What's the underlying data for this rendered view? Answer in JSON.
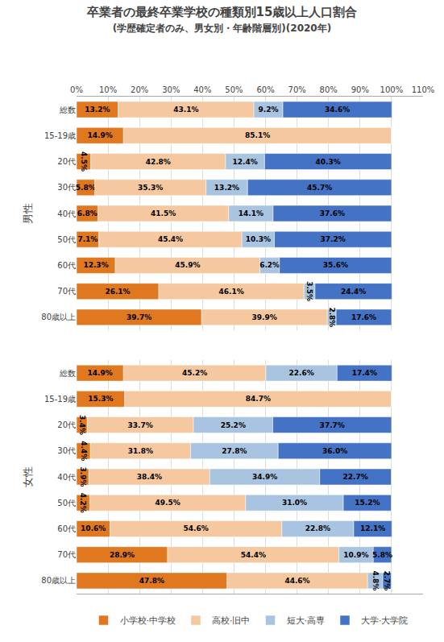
{
  "chart_data": [
    {
      "type": "bar",
      "orientation": "horizontal",
      "stacked": true,
      "data_labels": true,
      "grid": true,
      "title": "卒業者の最終卒業学校の種類別15歳以上人口割合",
      "subtitle": "(学歴確定者のみ、男女別・年齢階層別)(2020年)",
      "ylabel": "男性",
      "categories": [
        "総数",
        "15-19歳",
        "20代",
        "30代",
        "40代",
        "50代",
        "60代",
        "70代",
        "80歳以上"
      ],
      "series": [
        {
          "name": "小学校·中学校",
          "color": "#E07820",
          "values": [
            13.2,
            14.9,
            4.5,
            5.8,
            6.8,
            7.1,
            12.3,
            26.1,
            39.7
          ],
          "value_labels": [
            "13.2%",
            "14.9%",
            "4.5%",
            "5.8%",
            "6.8%",
            "7.1%",
            "12.3%",
            "26.1%",
            "39.7%"
          ]
        },
        {
          "name": "高校·旧中",
          "color": "#F5C8A0",
          "values": [
            43.1,
            85.1,
            42.8,
            35.3,
            41.5,
            45.4,
            45.9,
            46.1,
            39.9
          ],
          "value_labels": [
            "43.1%",
            "85.1%",
            "42.8%",
            "35.3%",
            "41.5%",
            "45.4%",
            "45.9%",
            "46.1%",
            "39.9%"
          ]
        },
        {
          "name": "短大·高専",
          "color": "#A8C4E0",
          "values": [
            9.2,
            0.0,
            12.4,
            13.2,
            14.1,
            10.3,
            6.2,
            3.5,
            2.8
          ],
          "value_labels": [
            "9.2%",
            null,
            "12.4%",
            "13.2%",
            "14.1%",
            "10.3%",
            "6.2%",
            "3.5%",
            "2.8%"
          ]
        },
        {
          "name": "大学·大学院",
          "color": "#4472C4",
          "values": [
            34.6,
            0.0,
            40.3,
            45.7,
            37.6,
            37.2,
            35.6,
            24.4,
            17.6
          ],
          "value_labels": [
            "34.6%",
            null,
            "40.3%",
            "45.7%",
            "37.6%",
            "37.2%",
            "35.6%",
            "24.4%",
            "17.6%"
          ]
        }
      ],
      "xlim": [
        0,
        110
      ],
      "xticks": [
        {
          "value": 0,
          "label": "0%"
        },
        {
          "value": 10,
          "label": "10%"
        },
        {
          "value": 20,
          "label": "20%"
        },
        {
          "value": 30,
          "label": "30%"
        },
        {
          "value": 40,
          "label": "40%"
        },
        {
          "value": 50,
          "label": "50%"
        },
        {
          "value": 60,
          "label": "60%"
        },
        {
          "value": 70,
          "label": "70%"
        },
        {
          "value": 80,
          "label": "80%"
        },
        {
          "value": 90,
          "label": "90%"
        },
        {
          "value": 100,
          "label": "100%"
        },
        {
          "value": 110,
          "label": "110%"
        }
      ]
    },
    {
      "type": "bar",
      "orientation": "horizontal",
      "stacked": true,
      "data_labels": true,
      "grid": true,
      "ylabel": "女性",
      "tick_labels": "y",
      "legend": "bottom",
      "categories": [
        "総数",
        "15-19歳",
        "20代",
        "30代",
        "40代",
        "50代",
        "60代",
        "70代",
        "80歳以上"
      ],
      "series": [
        {
          "name": "小学校·中学校",
          "color": "#E07820",
          "values": [
            14.9,
            15.3,
            3.4,
            4.4,
            3.9,
            4.2,
            10.6,
            28.9,
            47.8
          ],
          "value_labels": [
            "14.9%",
            "15.3%",
            "3.4%",
            "4.4%",
            "3.9%",
            "4.2%",
            "10.6%",
            "28.9%",
            "47.8%"
          ]
        },
        {
          "name": "高校·旧中",
          "color": "#F5C8A0",
          "values": [
            45.2,
            84.7,
            33.7,
            31.8,
            38.4,
            49.5,
            54.6,
            54.4,
            44.6
          ],
          "value_labels": [
            "45.2%",
            "84.7%",
            "33.7%",
            "31.8%",
            "38.4%",
            "49.5%",
            "54.6%",
            "54.4%",
            "44.6%"
          ]
        },
        {
          "name": "短大·高専",
          "color": "#A8C4E0",
          "values": [
            22.6,
            0.0,
            25.2,
            27.8,
            34.9,
            31.0,
            22.8,
            10.9,
            4.8
          ],
          "value_labels": [
            "22.6%",
            null,
            "25.2%",
            "27.8%",
            "34.9%",
            "31.0%",
            "22.8%",
            "10.9%",
            "4.8%"
          ]
        },
        {
          "name": "大学·大学院",
          "color": "#4472C4",
          "values": [
            17.4,
            0.0,
            37.7,
            36.0,
            22.7,
            15.2,
            12.1,
            5.8,
            2.7
          ],
          "value_labels": [
            "17.4%",
            null,
            "37.7%",
            "36.0%",
            "22.7%",
            "15.2%",
            "12.1%",
            "5.8%",
            "2.7%"
          ]
        }
      ],
      "xlim": [
        0,
        110
      ],
      "xticks": [
        0,
        10,
        20,
        30,
        40,
        50,
        60,
        70,
        80,
        90,
        100,
        110
      ]
    }
  ]
}
